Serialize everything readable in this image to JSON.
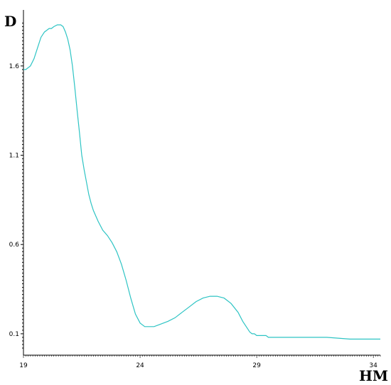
{
  "chart_data": {
    "type": "line",
    "xlabel": "НМ",
    "ylabel": "D",
    "xlim": [
      19,
      34.3
    ],
    "ylim": [
      0.02,
      1.85
    ],
    "xticks": [
      19,
      24,
      29,
      34
    ],
    "yticks": [
      0.1,
      0.6,
      1.1,
      1.6
    ],
    "grid": false,
    "line_color": "#2ec4c4",
    "series": [
      {
        "x": [
          19.0,
          19.1,
          19.3,
          19.45,
          19.6,
          19.75,
          19.9,
          20.0,
          20.1,
          20.2,
          20.3,
          20.45,
          20.6,
          20.7,
          20.8,
          20.9,
          21.0,
          21.1,
          21.2,
          21.3,
          21.4,
          21.5,
          21.6,
          21.7,
          21.8,
          21.9,
          22.0,
          22.2,
          22.4,
          22.6,
          22.8,
          23.0,
          23.2,
          23.4,
          23.6,
          23.8,
          24.0,
          24.2,
          24.4,
          24.6,
          24.8,
          25.0,
          25.2,
          25.5,
          25.8,
          26.1,
          26.4,
          26.7,
          27.0,
          27.3,
          27.6,
          27.9,
          28.2,
          28.4,
          28.6,
          28.7,
          28.8,
          28.9,
          29.0,
          29.1,
          29.2,
          29.3,
          29.4,
          29.5,
          29.7,
          30.0,
          30.5,
          31.0,
          32.0,
          33.0,
          33.5,
          34.0,
          34.3
        ],
        "y": [
          1.58,
          1.58,
          1.6,
          1.64,
          1.7,
          1.76,
          1.79,
          1.8,
          1.81,
          1.81,
          1.82,
          1.83,
          1.83,
          1.82,
          1.79,
          1.75,
          1.69,
          1.6,
          1.48,
          1.35,
          1.23,
          1.1,
          1.02,
          0.95,
          0.88,
          0.83,
          0.79,
          0.73,
          0.68,
          0.65,
          0.61,
          0.56,
          0.49,
          0.4,
          0.3,
          0.21,
          0.16,
          0.14,
          0.14,
          0.14,
          0.15,
          0.16,
          0.17,
          0.19,
          0.22,
          0.25,
          0.28,
          0.3,
          0.31,
          0.31,
          0.3,
          0.27,
          0.22,
          0.17,
          0.13,
          0.11,
          0.1,
          0.1,
          0.09,
          0.09,
          0.09,
          0.09,
          0.09,
          0.08,
          0.08,
          0.08,
          0.08,
          0.08,
          0.08,
          0.07,
          0.07,
          0.07,
          0.07
        ]
      }
    ]
  }
}
